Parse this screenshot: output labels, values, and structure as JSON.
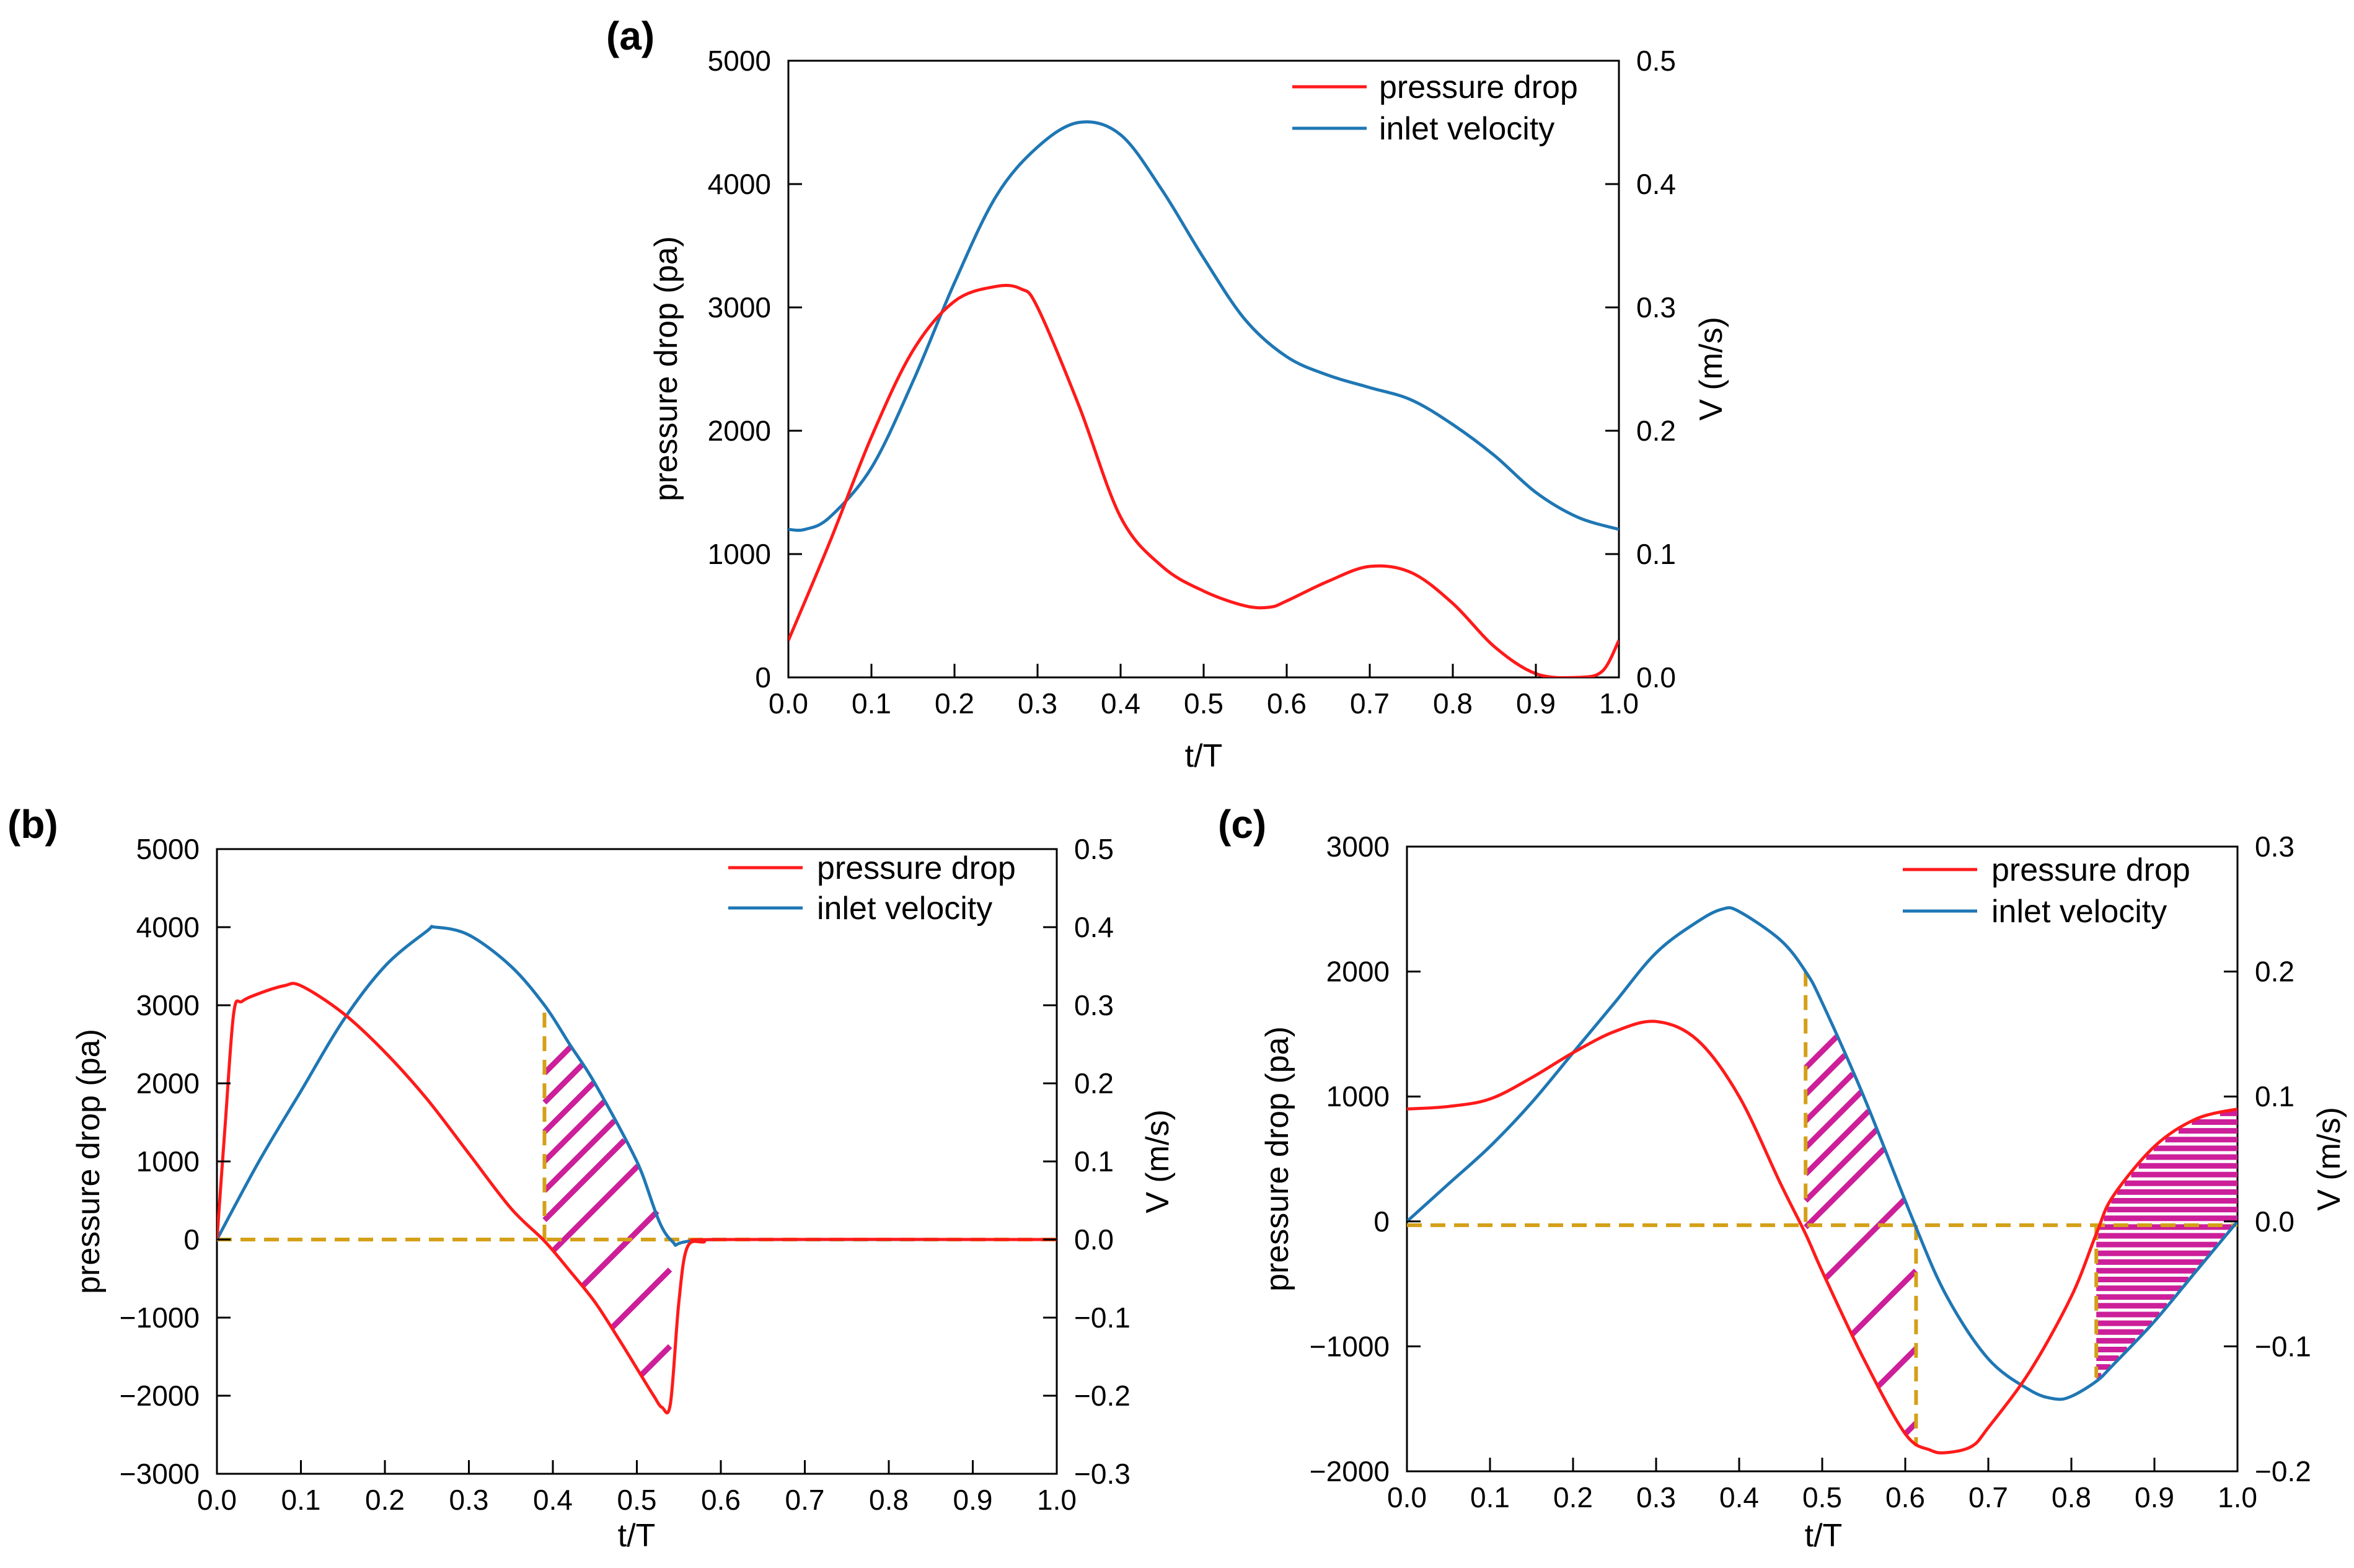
{
  "chart_data": [
    {
      "id": "a",
      "type": "line",
      "panel_label": "(a)",
      "xlabel": "t/T",
      "ylabel": "pressure drop (pa)",
      "y2label": "V (m/s)",
      "xlim": [
        0.0,
        1.0
      ],
      "ylim": [
        0,
        5000
      ],
      "y2lim": [
        0.0,
        0.5
      ],
      "xticks": [
        0.0,
        0.1,
        0.2,
        0.3,
        0.4,
        0.5,
        0.6,
        0.7,
        0.8,
        0.9,
        1.0
      ],
      "xtick_labels": [
        "0.0",
        "0.1",
        "0.2",
        "0.3",
        "0.4",
        "0.5",
        "0.6",
        "0.7",
        "0.8",
        "0.9",
        "1.0"
      ],
      "yticks": [
        0,
        1000,
        2000,
        3000,
        4000,
        5000
      ],
      "ytick_labels": [
        "0",
        "1000",
        "2000",
        "3000",
        "4000",
        "5000"
      ],
      "y2ticks": [
        0.0,
        0.1,
        0.2,
        0.3,
        0.4,
        0.5
      ],
      "y2tick_labels": [
        "0.0",
        "0.1",
        "0.2",
        "0.3",
        "0.4",
        "0.5"
      ],
      "legend_position": "top-right",
      "series": [
        {
          "name": "pressure drop",
          "axis": "left",
          "color": "#ff1a1a",
          "x": [
            0,
            0.05,
            0.1,
            0.15,
            0.2,
            0.25,
            0.28,
            0.3,
            0.35,
            0.4,
            0.45,
            0.5,
            0.55,
            0.58,
            0.6,
            0.65,
            0.7,
            0.75,
            0.8,
            0.85,
            0.9,
            0.95,
            0.98,
            1.0
          ],
          "values": [
            300,
            1100,
            1950,
            2650,
            3050,
            3170,
            3150,
            3000,
            2200,
            1300,
            900,
            700,
            580,
            570,
            620,
            780,
            900,
            850,
            600,
            250,
            30,
            0,
            50,
            300
          ]
        },
        {
          "name": "inlet velocity",
          "axis": "right",
          "color": "#1f77b4",
          "x": [
            0,
            0.02,
            0.05,
            0.1,
            0.15,
            0.2,
            0.25,
            0.3,
            0.35,
            0.4,
            0.45,
            0.5,
            0.55,
            0.6,
            0.65,
            0.7,
            0.75,
            0.8,
            0.85,
            0.9,
            0.95,
            1.0
          ],
          "values": [
            0.12,
            0.12,
            0.13,
            0.17,
            0.24,
            0.32,
            0.39,
            0.43,
            0.45,
            0.44,
            0.395,
            0.34,
            0.29,
            0.26,
            0.245,
            0.235,
            0.225,
            0.205,
            0.18,
            0.15,
            0.13,
            0.12
          ]
        }
      ],
      "guides": [],
      "hatches": []
    },
    {
      "id": "b",
      "type": "line",
      "panel_label": "(b)",
      "xlabel": "t/T",
      "ylabel": "pressure drop (pa)",
      "y2label": "V (m/s)",
      "xlim": [
        0.0,
        1.0
      ],
      "ylim": [
        -3000,
        5000
      ],
      "y2lim": [
        -0.3,
        0.5
      ],
      "xticks": [
        0.0,
        0.1,
        0.2,
        0.3,
        0.4,
        0.5,
        0.6,
        0.7,
        0.8,
        0.9,
        1.0
      ],
      "xtick_labels": [
        "0.0",
        "0.1",
        "0.2",
        "0.3",
        "0.4",
        "0.5",
        "0.6",
        "0.7",
        "0.8",
        "0.9",
        "1.0"
      ],
      "yticks": [
        -3000,
        -2000,
        -1000,
        0,
        1000,
        2000,
        3000,
        4000,
        5000
      ],
      "ytick_labels": [
        "−3000",
        "−2000",
        "−1000",
        "0",
        "1000",
        "2000",
        "3000",
        "4000",
        "5000"
      ],
      "y2ticks": [
        -0.3,
        -0.2,
        -0.1,
        0.0,
        0.1,
        0.2,
        0.3,
        0.4,
        0.5
      ],
      "y2tick_labels": [
        "−0.3",
        "−0.2",
        "−0.1",
        "0.0",
        "0.1",
        "0.2",
        "0.3",
        "0.4",
        "0.5"
      ],
      "legend_position": "top-right",
      "series": [
        {
          "name": "pressure drop",
          "axis": "left",
          "color": "#ff1a1a",
          "x": [
            0,
            0.01,
            0.02,
            0.03,
            0.05,
            0.08,
            0.1,
            0.15,
            0.2,
            0.25,
            0.3,
            0.35,
            0.39,
            0.42,
            0.45,
            0.48,
            0.5,
            0.52,
            0.53,
            0.54,
            0.55,
            0.56,
            0.58,
            0.6,
            1.0
          ],
          "values": [
            0,
            1500,
            2900,
            3050,
            3150,
            3250,
            3250,
            2900,
            2400,
            1800,
            1100,
            400,
            -20,
            -400,
            -800,
            -1300,
            -1650,
            -2000,
            -2150,
            -2100,
            -800,
            -100,
            -30,
            0,
            0
          ]
        },
        {
          "name": "inlet velocity",
          "axis": "right",
          "color": "#1f77b4",
          "x": [
            0,
            0.05,
            0.1,
            0.15,
            0.2,
            0.25,
            0.26,
            0.3,
            0.35,
            0.39,
            0.42,
            0.45,
            0.5,
            0.54,
            0.6,
            1.0
          ],
          "values": [
            0,
            0.1,
            0.19,
            0.28,
            0.35,
            0.395,
            0.4,
            0.39,
            0.35,
            0.3,
            0.25,
            0.2,
            0.1,
            0,
            0,
            0
          ]
        }
      ],
      "guides": [
        {
          "axis": "right",
          "x1": 0.0,
          "y1": 0.0,
          "x2": 1.0,
          "y2": 0.0
        },
        {
          "axis": "right",
          "x1": 0.39,
          "y1": 0.0,
          "x2": 0.39,
          "y2": 0.3
        }
      ],
      "hatches": [
        {
          "top": "v",
          "bottom": "p",
          "x_start": 0.39,
          "x_end": 0.54,
          "angle": "diagonal",
          "spacing_data": 0.035
        }
      ]
    },
    {
      "id": "c",
      "type": "line",
      "panel_label": "(c)",
      "xlabel": "t/T",
      "ylabel": "pressure drop (pa)",
      "y2label": "V (m/s)",
      "xlim": [
        0.0,
        1.0
      ],
      "ylim": [
        -2000,
        3000
      ],
      "y2lim": [
        -0.2,
        0.3
      ],
      "xticks": [
        0.0,
        0.1,
        0.2,
        0.3,
        0.4,
        0.5,
        0.6,
        0.7,
        0.8,
        0.9,
        1.0
      ],
      "xtick_labels": [
        "0.0",
        "0.1",
        "0.2",
        "0.3",
        "0.4",
        "0.5",
        "0.6",
        "0.7",
        "0.8",
        "0.9",
        "1.0"
      ],
      "yticks": [
        -2000,
        -1000,
        0,
        1000,
        2000,
        3000
      ],
      "ytick_labels": [
        "−2000",
        "−1000",
        "0",
        "1000",
        "2000",
        "3000"
      ],
      "y2ticks": [
        -0.2,
        -0.1,
        0.0,
        0.1,
        0.2,
        0.3
      ],
      "y2tick_labels": [
        "−0.2",
        "−0.1",
        "0.0",
        "0.1",
        "0.2",
        "0.3"
      ],
      "legend_position": "top-right",
      "series": [
        {
          "name": "pressure drop",
          "axis": "left",
          "color": "#ff1a1a",
          "x": [
            0,
            0.05,
            0.1,
            0.15,
            0.2,
            0.25,
            0.3,
            0.35,
            0.4,
            0.45,
            0.48,
            0.5,
            0.55,
            0.6,
            0.63,
            0.65,
            0.68,
            0.7,
            0.75,
            0.8,
            0.83,
            0.85,
            0.9,
            0.95,
            1.0
          ],
          "values": [
            900,
            920,
            980,
            1150,
            1350,
            1520,
            1600,
            1450,
            1000,
            300,
            -100,
            -400,
            -1100,
            -1700,
            -1830,
            -1850,
            -1800,
            -1650,
            -1200,
            -600,
            -100,
            200,
            600,
            820,
            900
          ]
        },
        {
          "name": "inlet velocity",
          "axis": "right",
          "color": "#1f77b4",
          "x": [
            0,
            0.05,
            0.1,
            0.15,
            0.2,
            0.25,
            0.3,
            0.35,
            0.38,
            0.4,
            0.45,
            0.48,
            0.5,
            0.55,
            0.61,
            0.65,
            0.7,
            0.75,
            0.78,
            0.8,
            0.83,
            0.85,
            0.9,
            0.95,
            1.0
          ],
          "values": [
            0,
            0.03,
            0.06,
            0.095,
            0.135,
            0.175,
            0.215,
            0.24,
            0.25,
            0.248,
            0.225,
            0.2,
            0.175,
            0.1,
            0,
            -0.06,
            -0.11,
            -0.135,
            -0.142,
            -0.14,
            -0.128,
            -0.115,
            -0.08,
            -0.04,
            0
          ]
        }
      ],
      "guides": [
        {
          "axis": "right",
          "x1": 0.0,
          "y1": -0.003,
          "x2": 1.0,
          "y2": -0.003
        },
        {
          "axis": "right",
          "x1": 0.48,
          "y1": 0.2,
          "x2": 0.48,
          "y2": -0.003
        },
        {
          "axis": "right",
          "x1": 0.613,
          "y1": -0.003,
          "x2": 0.613,
          "y2": -0.18
        },
        {
          "axis": "right",
          "x1": 0.83,
          "y1": -0.003,
          "x2": 0.83,
          "y2": -0.125
        }
      ],
      "hatches": [
        {
          "top": "v",
          "bottom": "p",
          "x_start": 0.48,
          "x_end": 0.613,
          "angle": "diagonal",
          "spacing_data": 0.032
        },
        {
          "top": "p",
          "bottom": "v",
          "x_start": 0.83,
          "x_end": 1.0,
          "angle": "horizontal",
          "spacing_data": 0.014
        }
      ]
    }
  ]
}
